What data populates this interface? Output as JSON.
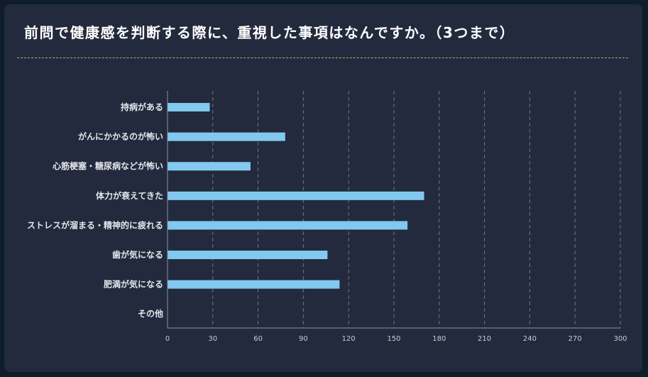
{
  "title": "前問で健康感を判断する際に、重視した事項はなんですか。（3つまで）",
  "colors": {
    "background": "#232a3d",
    "bar": "#82c9ef",
    "grid": "#6f7585",
    "divider": "#c8a94a",
    "text": "#e4e6ec"
  },
  "chart_data": {
    "type": "bar",
    "orientation": "horizontal",
    "title": "前問で健康感を判断する際に、重視した事項はなんですか。（3つまで）",
    "categories": [
      "持病がある",
      "がんにかかるのが怖い",
      "心筋梗塞・糖尿病などが怖い",
      "体力が衰えてきた",
      "ストレスが溜まる・精神的に疲れる",
      "歯が気になる",
      "肥満が気になる",
      "その他"
    ],
    "values": [
      28,
      78,
      55,
      170,
      159,
      106,
      114,
      0
    ],
    "xlim": [
      0,
      300
    ],
    "xticks": [
      "0",
      "30",
      "60",
      "90",
      "120",
      "150",
      "180",
      "210",
      "240",
      "270",
      "300"
    ],
    "grid": "vertical dashed",
    "legend": "none"
  }
}
